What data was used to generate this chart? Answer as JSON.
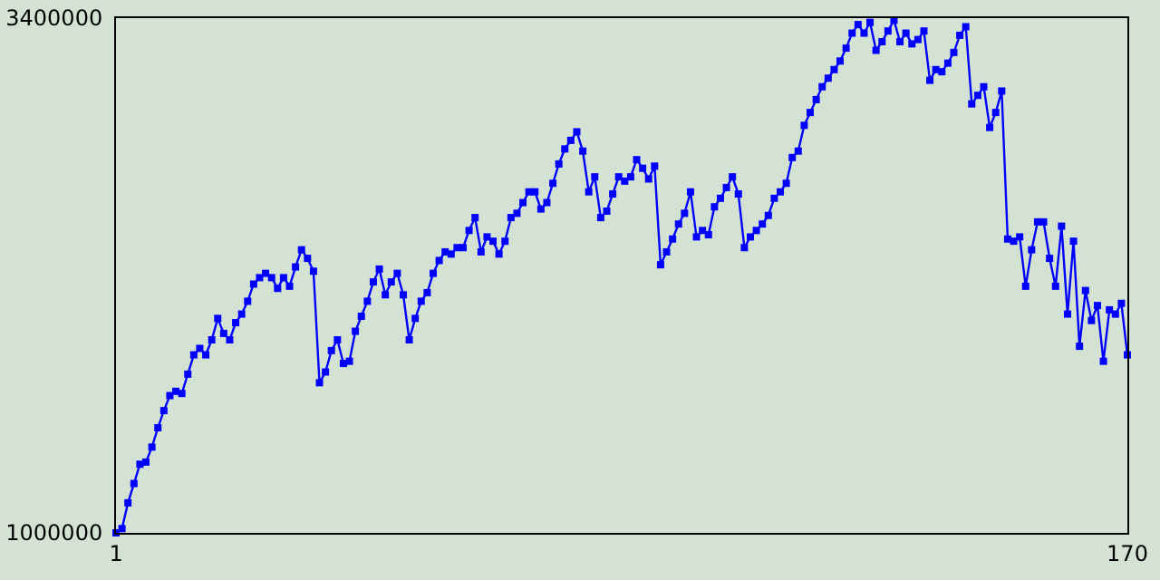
{
  "chart_data": {
    "type": "line",
    "x": [
      1,
      2,
      3,
      4,
      5,
      6,
      7,
      8,
      9,
      10,
      11,
      12,
      13,
      14,
      15,
      16,
      17,
      18,
      19,
      20,
      21,
      22,
      23,
      24,
      25,
      26,
      27,
      28,
      29,
      30,
      31,
      32,
      33,
      34,
      35,
      36,
      37,
      38,
      39,
      40,
      41,
      42,
      43,
      44,
      45,
      46,
      47,
      48,
      49,
      50,
      51,
      52,
      53,
      54,
      55,
      56,
      57,
      58,
      59,
      60,
      61,
      62,
      63,
      64,
      65,
      66,
      67,
      68,
      69,
      70,
      71,
      72,
      73,
      74,
      75,
      76,
      77,
      78,
      79,
      80,
      81,
      82,
      83,
      84,
      85,
      86,
      87,
      88,
      89,
      90,
      91,
      92,
      93,
      94,
      95,
      96,
      97,
      98,
      99,
      100,
      101,
      102,
      103,
      104,
      105,
      106,
      107,
      108,
      109,
      110,
      111,
      112,
      113,
      114,
      115,
      116,
      117,
      118,
      119,
      120,
      121,
      122,
      123,
      124,
      125,
      126,
      127,
      128,
      129,
      130,
      131,
      132,
      133,
      134,
      135,
      136,
      137,
      138,
      139,
      140,
      141,
      142,
      143,
      144,
      145,
      146,
      147,
      148,
      149,
      150,
      151,
      152,
      153,
      154,
      155,
      156,
      157,
      158,
      159,
      160,
      161,
      162,
      163,
      164,
      165,
      166,
      167,
      168,
      169,
      170
    ],
    "series": [
      {
        "color": "#0000ff",
        "values": [
          1000000,
          1020000,
          1140000,
          1230000,
          1320000,
          1330000,
          1400000,
          1490000,
          1570000,
          1640000,
          1660000,
          1650000,
          1740000,
          1830000,
          1860000,
          1830000,
          1900000,
          2000000,
          1930000,
          1900000,
          1980000,
          2020000,
          2080000,
          2160000,
          2190000,
          2210000,
          2190000,
          2140000,
          2190000,
          2150000,
          2240000,
          2320000,
          2280000,
          2220000,
          1700000,
          1750000,
          1850000,
          1900000,
          1790000,
          1800000,
          1940000,
          2010000,
          2080000,
          2170000,
          2230000,
          2110000,
          2170000,
          2210000,
          2110000,
          1900000,
          2000000,
          2080000,
          2120000,
          2210000,
          2270000,
          2310000,
          2300000,
          2330000,
          2330000,
          2410000,
          2470000,
          2310000,
          2380000,
          2360000,
          2300000,
          2360000,
          2470000,
          2490000,
          2540000,
          2590000,
          2590000,
          2510000,
          2540000,
          2630000,
          2720000,
          2790000,
          2830000,
          2870000,
          2780000,
          2590000,
          2660000,
          2470000,
          2500000,
          2580000,
          2660000,
          2640000,
          2660000,
          2740000,
          2700000,
          2650000,
          2710000,
          2250000,
          2310000,
          2370000,
          2440000,
          2490000,
          2590000,
          2380000,
          2410000,
          2390000,
          2520000,
          2560000,
          2610000,
          2660000,
          2580000,
          2330000,
          2380000,
          2410000,
          2440000,
          2480000,
          2560000,
          2590000,
          2630000,
          2750000,
          2780000,
          2900000,
          2960000,
          3020000,
          3080000,
          3120000,
          3160000,
          3200000,
          3260000,
          3330000,
          3370000,
          3330000,
          3380000,
          3250000,
          3290000,
          3340000,
          3390000,
          3290000,
          3330000,
          3280000,
          3300000,
          3340000,
          3110000,
          3160000,
          3150000,
          3190000,
          3240000,
          3320000,
          3360000,
          3000000,
          3040000,
          3080000,
          2890000,
          2960000,
          3060000,
          2370000,
          2360000,
          2380000,
          2150000,
          2320000,
          2450000,
          2450000,
          2280000,
          2150000,
          2430000,
          2020000,
          2360000,
          1870000,
          2130000,
          1990000,
          2060000,
          1800000,
          2040000,
          2020000,
          2070000,
          1830000
        ]
      }
    ],
    "xlim": [
      1,
      170
    ],
    "xticks": [
      1,
      170
    ],
    "ylim": [
      1000000,
      3400000
    ],
    "yticks": [
      1000000,
      3400000
    ],
    "marker": "square",
    "line_style": "solid"
  }
}
